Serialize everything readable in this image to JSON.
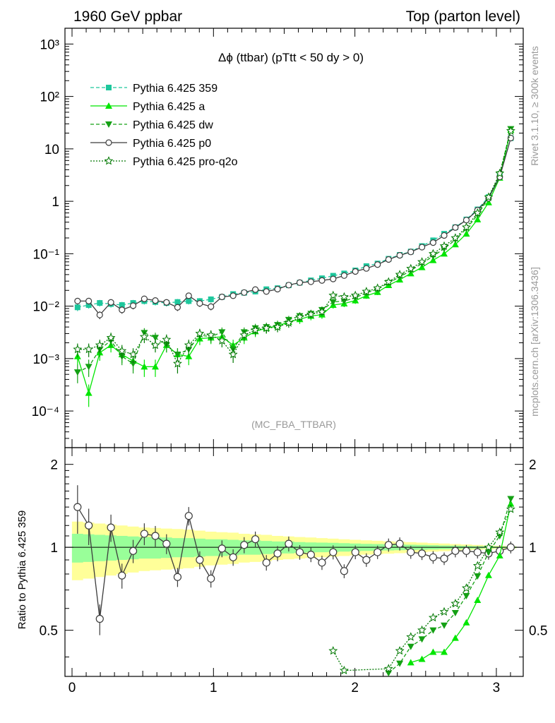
{
  "header": {
    "left": "1960 GeV ppbar",
    "right": "Top (parton level)"
  },
  "side_text": {
    "rivet": "Rivet 3.1.10, ≥ 300k events",
    "mcplots": "mcplots.cern.ch [arXiv:1306.3436]"
  },
  "chart_data": {
    "type": "line",
    "title": "Δϕ (ttbar) (pTtt < 50 dy > 0)",
    "watermark": "(MC_FBA_TTBAR)",
    "top_panel": {
      "yscale": "log",
      "ylim": [
        2e-05,
        2000
      ],
      "ytick_labels": [
        "10⁻⁴",
        "10⁻³",
        "10⁻²",
        "10⁻¹",
        "1",
        "10",
        "10²",
        "10³"
      ]
    },
    "ratio_panel": {
      "ylabel": "Ratio to Pythia 6.425 359",
      "ylim": [
        0.34,
        2.3
      ],
      "ytick_labels": [
        "0.5",
        "1",
        "2"
      ]
    },
    "xlim": [
      -0.05,
      3.19
    ],
    "xtick_labels": [
      "0",
      "1",
      "2",
      "3"
    ],
    "x": [
      0.039,
      0.118,
      0.196,
      0.275,
      0.353,
      0.432,
      0.511,
      0.589,
      0.668,
      0.746,
      0.825,
      0.903,
      0.982,
      1.06,
      1.139,
      1.217,
      1.296,
      1.374,
      1.453,
      1.532,
      1.61,
      1.689,
      1.767,
      1.846,
      1.924,
      2.003,
      2.081,
      2.16,
      2.238,
      2.317,
      2.395,
      2.474,
      2.553,
      2.631,
      2.71,
      2.788,
      2.867,
      2.945,
      3.024,
      3.102
    ],
    "series": [
      {
        "name": "Pythia 6.425 359",
        "color": "#1dc79c",
        "marker": "square",
        "dash": "5,3",
        "values": [
          0.0095,
          0.0105,
          0.0115,
          0.011,
          0.0105,
          0.0115,
          0.0125,
          0.012,
          0.0115,
          0.012,
          0.0125,
          0.0125,
          0.0135,
          0.015,
          0.017,
          0.018,
          0.019,
          0.021,
          0.022,
          0.025,
          0.028,
          0.031,
          0.034,
          0.038,
          0.042,
          0.048,
          0.058,
          0.065,
          0.08,
          0.095,
          0.11,
          0.14,
          0.18,
          0.24,
          0.32,
          0.45,
          0.7,
          1.2,
          3.0,
          16.0
        ]
      },
      {
        "name": "Pythia 6.425 a",
        "color": "#00e600",
        "marker": "triangle-up",
        "dash": "",
        "values": [
          0.0011,
          0.00022,
          0.0013,
          0.0018,
          0.0012,
          0.0009,
          0.0007,
          0.0007,
          0.0018,
          0.0012,
          0.0011,
          0.0024,
          0.0025,
          0.0026,
          0.0018,
          0.0025,
          0.0033,
          0.0038,
          0.0042,
          0.005,
          0.0056,
          0.0065,
          0.0069,
          0.0105,
          0.0112,
          0.0128,
          0.0158,
          0.0185,
          0.025,
          0.032,
          0.042,
          0.055,
          0.075,
          0.1,
          0.15,
          0.24,
          0.45,
          0.95,
          2.8,
          23.0
        ]
      },
      {
        "name": "Pythia 6.425 dw",
        "color": "#14a014",
        "marker": "triangle-down",
        "dash": "5,3",
        "values": [
          0.00055,
          0.0007,
          0.0015,
          0.0022,
          0.0011,
          0.0008,
          0.0031,
          0.0025,
          0.0018,
          0.0012,
          0.0015,
          0.0028,
          0.0026,
          0.0032,
          0.0015,
          0.0032,
          0.0038,
          0.004,
          0.0044,
          0.0055,
          0.0065,
          0.0072,
          0.0085,
          0.012,
          0.0125,
          0.0145,
          0.018,
          0.021,
          0.028,
          0.036,
          0.048,
          0.065,
          0.09,
          0.125,
          0.185,
          0.3,
          0.55,
          1.15,
          3.3,
          24.0
        ]
      },
      {
        "name": "Pythia 6.425 p0",
        "color": "#3c3c3c",
        "marker": "circle-open",
        "dash": "",
        "values": [
          0.0125,
          0.0125,
          0.0068,
          0.0118,
          0.0085,
          0.0102,
          0.0138,
          0.0128,
          0.0118,
          0.0095,
          0.0158,
          0.0113,
          0.0098,
          0.015,
          0.0158,
          0.0182,
          0.0207,
          0.019,
          0.0211,
          0.0252,
          0.0281,
          0.0292,
          0.0309,
          0.033,
          0.0383,
          0.0458,
          0.0524,
          0.0621,
          0.0776,
          0.0931,
          0.1082,
          0.1335,
          0.1629,
          0.2232,
          0.3158,
          0.4383,
          0.6787,
          1.1385,
          2.9112,
          16.116
        ]
      },
      {
        "name": "Pythia 6.425 pro-q2o",
        "color": "#007800",
        "marker": "star-open",
        "dash": "2,2",
        "values": [
          0.0015,
          0.0015,
          0.0018,
          0.0025,
          0.0014,
          0.0012,
          0.0026,
          0.0018,
          0.0023,
          0.0008,
          0.0018,
          0.003,
          0.0028,
          0.0022,
          0.0012,
          0.0028,
          0.0035,
          0.0038,
          0.004,
          0.0048,
          0.0062,
          0.007,
          0.0078,
          0.016,
          0.015,
          0.016,
          0.019,
          0.022,
          0.029,
          0.04,
          0.052,
          0.07,
          0.1,
          0.14,
          0.2,
          0.32,
          0.6,
          1.2,
          3.4,
          22.0
        ]
      }
    ],
    "p0_ratio": [
      1.4,
      1.2,
      0.55,
      1.18,
      0.79,
      0.97,
      1.12,
      1.1,
      1.03,
      0.78,
      1.3,
      0.9,
      0.77,
      0.99,
      0.92,
      1.02,
      1.07,
      0.88,
      0.95,
      1.03,
      0.96,
      0.94,
      0.88,
      0.96,
      0.82,
      0.96,
      0.9,
      0.96,
      1.02,
      1.03,
      0.96,
      0.95,
      0.92,
      0.91,
      0.97,
      0.97,
      0.96,
      0.95,
      0.97,
      1.0
    ],
    "band_inner_half": [
      0.12,
      0.115,
      0.11,
      0.105,
      0.1,
      0.095,
      0.09,
      0.09,
      0.085,
      0.08,
      0.08,
      0.075,
      0.07,
      0.07,
      0.065,
      0.06,
      0.06,
      0.055,
      0.05,
      0.05,
      0.045,
      0.042,
      0.04,
      0.038,
      0.035,
      0.033,
      0.03,
      0.028,
      0.026,
      0.024,
      0.022,
      0.02,
      0.018,
      0.016,
      0.014,
      0.012,
      0.01,
      0.008,
      0.007,
      0.006
    ],
    "band_outer_half": [
      0.24,
      0.23,
      0.22,
      0.21,
      0.2,
      0.19,
      0.18,
      0.175,
      0.17,
      0.165,
      0.16,
      0.15,
      0.14,
      0.135,
      0.13,
      0.12,
      0.115,
      0.11,
      0.1,
      0.095,
      0.09,
      0.085,
      0.08,
      0.075,
      0.07,
      0.065,
      0.06,
      0.056,
      0.052,
      0.048,
      0.044,
      0.04,
      0.036,
      0.032,
      0.028,
      0.024,
      0.02,
      0.016,
      0.013,
      0.01
    ]
  }
}
